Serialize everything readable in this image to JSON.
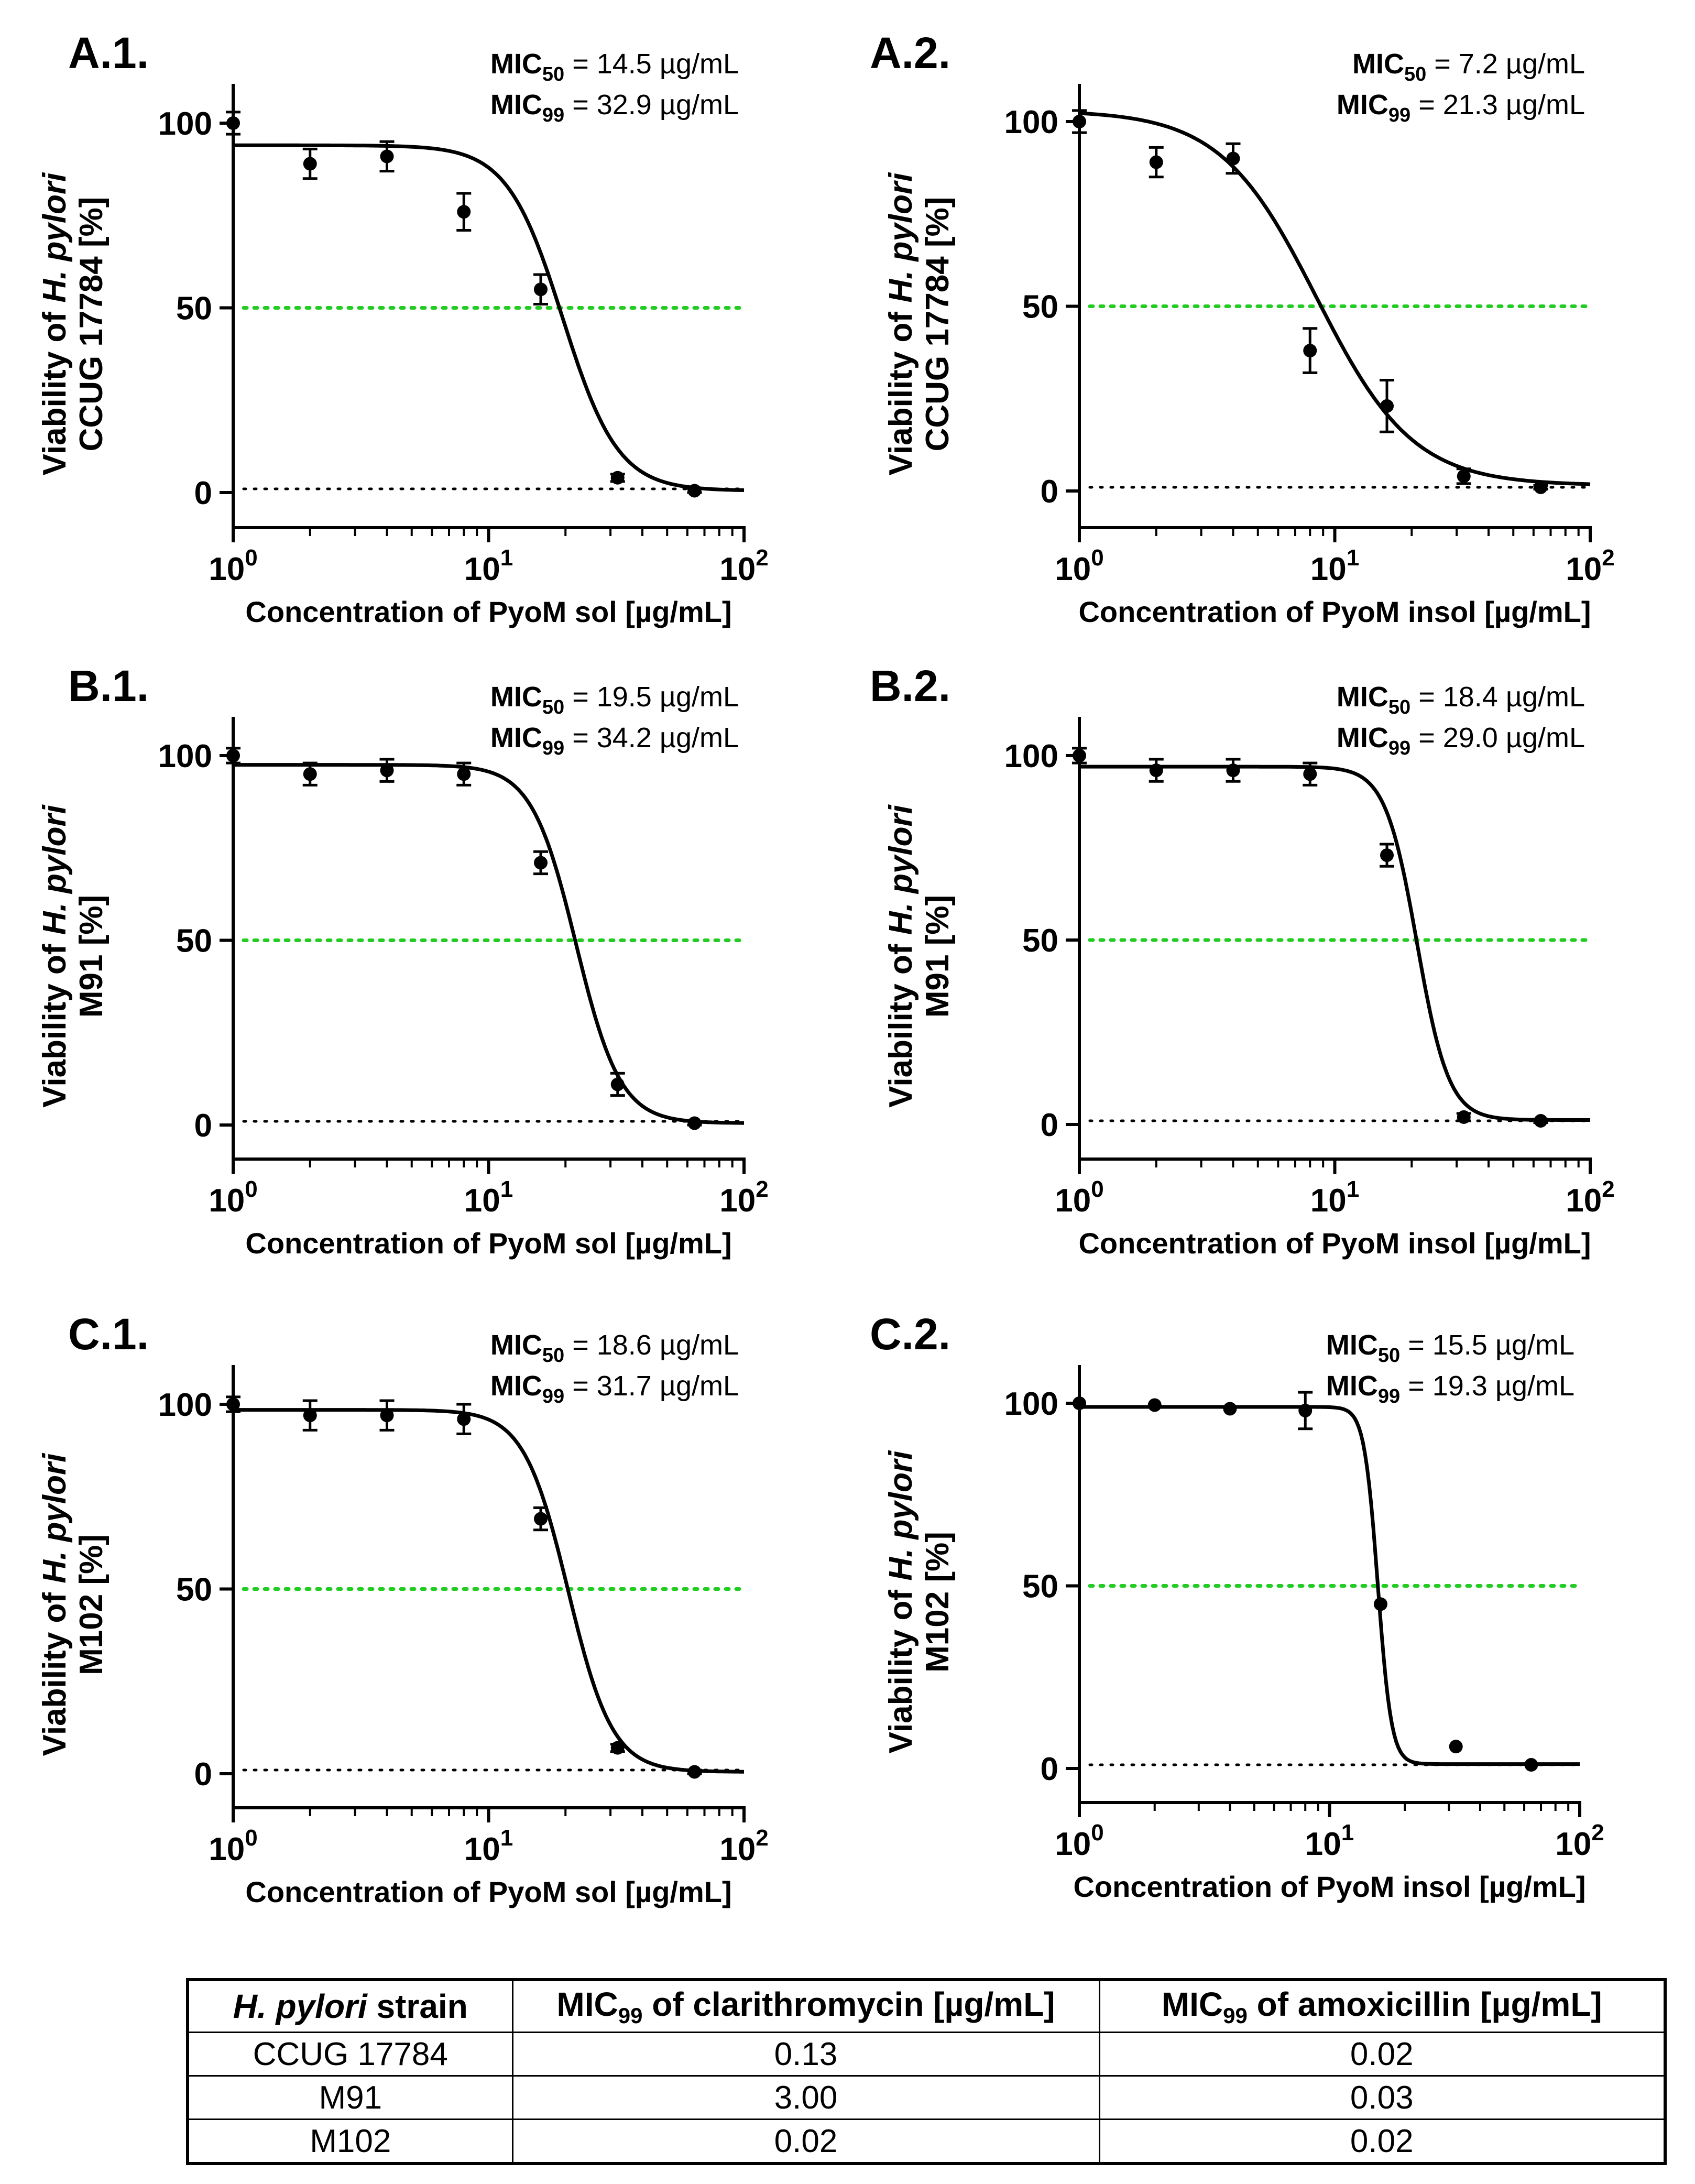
{
  "chart_data": [
    {
      "type": "scatter",
      "panel_label": "A.1.",
      "title": "",
      "xlabel": "Concentration of PyoM sol [µg/mL]",
      "ylabel_prefix": "Viability of ",
      "ylabel_species": "H. pylori",
      "ylabel_strain": "CCUG 17784",
      "ylabel_unit": " [%]",
      "xscale": "log10",
      "xlim": [
        1,
        100
      ],
      "ylim": [
        -10,
        110
      ],
      "x_ticks": [
        1,
        10,
        100
      ],
      "x_tick_exponents": [
        "0",
        "1",
        "2"
      ],
      "y_ticks": [
        0,
        50,
        100
      ],
      "mic50": {
        "label": "MIC",
        "sub": "50",
        "text": " = 14.5 µg/mL"
      },
      "mic99": {
        "label": "MIC",
        "sub": "99",
        "text": " = 32.9 µg/mL"
      },
      "reference_lines": [
        {
          "y": 50,
          "color": "#22cc22",
          "style": "dotted"
        },
        {
          "y": 1,
          "color": "#000000",
          "style": "dotted"
        }
      ],
      "curve": {
        "top": 94,
        "bottom": 0.5,
        "ic50": 19.5,
        "hill": 4
      },
      "points": [
        {
          "x": 1,
          "y": 100,
          "err": 3
        },
        {
          "x": 2,
          "y": 89,
          "err": 4
        },
        {
          "x": 4,
          "y": 91,
          "err": 4
        },
        {
          "x": 8,
          "y": 76,
          "err": 5
        },
        {
          "x": 16,
          "y": 55,
          "err": 4
        },
        {
          "x": 32,
          "y": 4,
          "err": 1
        },
        {
          "x": 64,
          "y": 0.5,
          "err": 0.5
        }
      ]
    },
    {
      "type": "scatter",
      "panel_label": "A.2.",
      "title": "",
      "xlabel": "Concentration of PyoM insol [µg/mL]",
      "ylabel_prefix": "Viability of ",
      "ylabel_species": "H. pylori",
      "ylabel_strain": "CCUG 17784",
      "ylabel_unit": " [%]",
      "xscale": "log10",
      "xlim": [
        1,
        100
      ],
      "ylim": [
        -10,
        110
      ],
      "x_ticks": [
        1,
        10,
        100
      ],
      "x_tick_exponents": [
        "0",
        "1",
        "2"
      ],
      "y_ticks": [
        0,
        50,
        100
      ],
      "mic50": {
        "label": "MIC",
        "sub": "50",
        "text": " = 7.2 µg/mL"
      },
      "mic99": {
        "label": "MIC",
        "sub": "99",
        "text": " = 21.3 µg/mL"
      },
      "reference_lines": [
        {
          "y": 50,
          "color": "#22cc22",
          "style": "dotted"
        },
        {
          "y": 1,
          "color": "#000000",
          "style": "dotted"
        }
      ],
      "curve": {
        "top": 103,
        "bottom": 1.5,
        "ic50": 8.5,
        "hill": 2.3
      },
      "points": [
        {
          "x": 1,
          "y": 100,
          "err": 3
        },
        {
          "x": 2,
          "y": 89,
          "err": 4
        },
        {
          "x": 4,
          "y": 90,
          "err": 4
        },
        {
          "x": 8,
          "y": 38,
          "err": 6
        },
        {
          "x": 16,
          "y": 23,
          "err": 7
        },
        {
          "x": 32,
          "y": 4,
          "err": 2
        },
        {
          "x": 64,
          "y": 1,
          "err": 0.5
        }
      ]
    },
    {
      "type": "scatter",
      "panel_label": "B.1.",
      "title": "",
      "xlabel": "Concentration of PyoM sol [µg/mL]",
      "ylabel_prefix": "Viability of ",
      "ylabel_species": "H. pylori",
      "ylabel_strain": "M91",
      "ylabel_unit": " [%]",
      "xscale": "log10",
      "xlim": [
        1,
        100
      ],
      "ylim": [
        -10,
        110
      ],
      "x_ticks": [
        1,
        10,
        100
      ],
      "x_tick_exponents": [
        "0",
        "1",
        "2"
      ],
      "y_ticks": [
        0,
        50,
        100
      ],
      "mic50": {
        "label": "MIC",
        "sub": "50",
        "text": " = 19.5 µg/mL"
      },
      "mic99": {
        "label": "MIC",
        "sub": "99",
        "text": " = 34.2 µg/mL"
      },
      "reference_lines": [
        {
          "y": 50,
          "color": "#22cc22",
          "style": "dotted"
        },
        {
          "y": 1,
          "color": "#000000",
          "style": "dotted"
        }
      ],
      "curve": {
        "top": 97.5,
        "bottom": 0.5,
        "ic50": 22,
        "hill": 5
      },
      "points": [
        {
          "x": 1,
          "y": 100,
          "err": 2
        },
        {
          "x": 2,
          "y": 95,
          "err": 3
        },
        {
          "x": 4,
          "y": 96,
          "err": 3
        },
        {
          "x": 8,
          "y": 95,
          "err": 3
        },
        {
          "x": 16,
          "y": 71,
          "err": 3
        },
        {
          "x": 32,
          "y": 11,
          "err": 3
        },
        {
          "x": 64,
          "y": 0.5,
          "err": 0.5
        }
      ]
    },
    {
      "type": "scatter",
      "panel_label": "B.2.",
      "title": "",
      "xlabel": "Concentration of PyoM insol [µg/mL]",
      "ylabel_prefix": "Viability of ",
      "ylabel_species": "H. pylori",
      "ylabel_strain": "M91",
      "ylabel_unit": " [%]",
      "xscale": "log10",
      "xlim": [
        1,
        100
      ],
      "ylim": [
        -10,
        110
      ],
      "x_ticks": [
        1,
        10,
        100
      ],
      "x_tick_exponents": [
        "0",
        "1",
        "2"
      ],
      "y_ticks": [
        0,
        50,
        100
      ],
      "mic50": {
        "label": "MIC",
        "sub": "50",
        "text": " = 18.4 µg/mL"
      },
      "mic99": {
        "label": "MIC",
        "sub": "99",
        "text": " = 29.0 µg/mL"
      },
      "reference_lines": [
        {
          "y": 50,
          "color": "#22cc22",
          "style": "dotted"
        },
        {
          "y": 1,
          "color": "#000000",
          "style": "dotted"
        }
      ],
      "curve": {
        "top": 97,
        "bottom": 1.2,
        "ic50": 21,
        "hill": 7
      },
      "points": [
        {
          "x": 1,
          "y": 100,
          "err": 2
        },
        {
          "x": 2,
          "y": 96,
          "err": 3
        },
        {
          "x": 4,
          "y": 96,
          "err": 3
        },
        {
          "x": 8,
          "y": 95,
          "err": 3
        },
        {
          "x": 16,
          "y": 73,
          "err": 3
        },
        {
          "x": 32,
          "y": 2,
          "err": 1
        },
        {
          "x": 64,
          "y": 1,
          "err": 0.5
        }
      ]
    },
    {
      "type": "scatter",
      "panel_label": "C.1.",
      "title": "",
      "xlabel": "Concentration of PyoM sol [µg/mL]",
      "ylabel_prefix": "Viability of ",
      "ylabel_species": "H. pylori",
      "ylabel_strain": "M102",
      "ylabel_unit": " [%]",
      "xscale": "log10",
      "xlim": [
        1,
        100
      ],
      "ylim": [
        -10,
        110
      ],
      "x_ticks": [
        1,
        10,
        100
      ],
      "x_tick_exponents": [
        "0",
        "1",
        "2"
      ],
      "y_ticks": [
        0,
        50,
        100
      ],
      "mic50": {
        "label": "MIC",
        "sub": "50",
        "text": " = 18.6 µg/mL"
      },
      "mic99": {
        "label": "MIC",
        "sub": "99",
        "text": " = 31.7 µg/mL"
      },
      "reference_lines": [
        {
          "y": 50,
          "color": "#22cc22",
          "style": "dotted"
        },
        {
          "y": 1,
          "color": "#000000",
          "style": "dotted"
        }
      ],
      "curve": {
        "top": 98.5,
        "bottom": 0.5,
        "ic50": 20.5,
        "hill": 5
      },
      "points": [
        {
          "x": 1,
          "y": 100,
          "err": 2
        },
        {
          "x": 2,
          "y": 97,
          "err": 4
        },
        {
          "x": 4,
          "y": 97,
          "err": 4
        },
        {
          "x": 8,
          "y": 96,
          "err": 4
        },
        {
          "x": 16,
          "y": 69,
          "err": 3
        },
        {
          "x": 32,
          "y": 7,
          "err": 1
        },
        {
          "x": 64,
          "y": 0.5,
          "err": 0.5
        }
      ]
    },
    {
      "type": "scatter",
      "panel_label": "C.2.",
      "title": "",
      "xlabel": "Concentration of PyoM insol [µg/mL]",
      "ylabel_prefix": "Viability of ",
      "ylabel_species": "H. pylori",
      "ylabel_strain": "M102",
      "ylabel_unit": " [%]",
      "xscale": "log10",
      "xlim": [
        1,
        100
      ],
      "ylim": [
        -10,
        110
      ],
      "x_ticks": [
        1,
        10,
        100
      ],
      "x_tick_exponents": [
        "0",
        "1",
        "2"
      ],
      "y_ticks": [
        0,
        50,
        100
      ],
      "mic50": {
        "label": "MIC",
        "sub": "50",
        "text": " = 15.5 µg/mL"
      },
      "mic99": {
        "label": "MIC",
        "sub": "99",
        "text": " = 19.3 µg/mL"
      },
      "reference_lines": [
        {
          "y": 50,
          "color": "#22cc22",
          "style": "dotted"
        },
        {
          "y": 1,
          "color": "#000000",
          "style": "dotted"
        }
      ],
      "curve": {
        "top": 99,
        "bottom": 1.2,
        "ic50": 15.6,
        "hill": 16
      },
      "points": [
        {
          "x": 1,
          "y": 100,
          "err": 0
        },
        {
          "x": 2,
          "y": 99.5,
          "err": 0
        },
        {
          "x": 4,
          "y": 98.5,
          "err": 0
        },
        {
          "x": 8,
          "y": 98,
          "err": 5
        },
        {
          "x": 16,
          "y": 45,
          "err": 0
        },
        {
          "x": 32,
          "y": 6,
          "err": 0
        },
        {
          "x": 64,
          "y": 1,
          "err": 0
        }
      ]
    }
  ],
  "table": {
    "headers": [
      {
        "italic": "H. pylori",
        "rest": " strain"
      },
      {
        "pre": "MIC",
        "sub": "99",
        "rest": " of clarithromycin [µg/mL]"
      },
      {
        "pre": "MIC",
        "sub": "99",
        "rest": " of amoxicillin [µg/mL]"
      }
    ],
    "rows": [
      [
        "CCUG 17784",
        "0.13",
        "0.02"
      ],
      [
        "M91",
        "3.00",
        "0.03"
      ],
      [
        "M102",
        "0.02",
        "0.02"
      ]
    ]
  }
}
